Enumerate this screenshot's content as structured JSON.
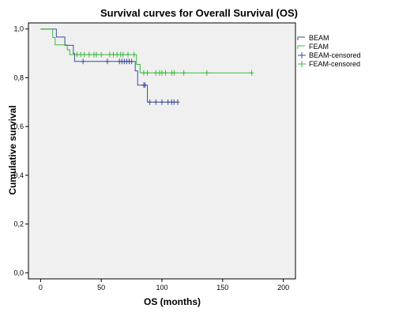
{
  "chart_data": {
    "type": "line",
    "title": "Survival curves for Overall Survival (OS)",
    "xlabel": "OS (months)",
    "ylabel": "Cumulative survival",
    "xlim": [
      -10,
      210
    ],
    "ylim": [
      -0.025,
      1.025
    ],
    "x_ticks": [
      0,
      50,
      100,
      150,
      200
    ],
    "x_tick_labels": [
      "0",
      "50",
      "100",
      "150",
      "200"
    ],
    "y_ticks": [
      0,
      0.2,
      0.4,
      0.6,
      0.8,
      1.0
    ],
    "y_tick_labels": [
      "0,0",
      "0,2",
      "0,4",
      "0,6",
      "0,8",
      "1,0"
    ],
    "plot_background": "#f0f0f0",
    "grid": false,
    "legend_position": "right",
    "legend": [
      "BEAM",
      "FEAM",
      "BEAM-censored",
      "FEAM-censored"
    ],
    "series": [
      {
        "name": "BEAM",
        "color": "#3a4c9c",
        "step": [
          [
            0,
            1.0
          ],
          [
            13,
            1.0
          ],
          [
            13,
            0.967
          ],
          [
            20,
            0.967
          ],
          [
            20,
            0.933
          ],
          [
            27,
            0.933
          ],
          [
            27,
            0.9
          ],
          [
            28,
            0.9
          ],
          [
            28,
            0.867
          ],
          [
            78,
            0.867
          ],
          [
            78,
            0.828
          ],
          [
            80,
            0.828
          ],
          [
            80,
            0.77
          ],
          [
            88,
            0.77
          ],
          [
            88,
            0.7
          ],
          [
            113,
            0.7
          ]
        ],
        "censored": [
          [
            35,
            0.867
          ],
          [
            55,
            0.867
          ],
          [
            65,
            0.867
          ],
          [
            67,
            0.867
          ],
          [
            69,
            0.867
          ],
          [
            71,
            0.867
          ],
          [
            73,
            0.867
          ],
          [
            75,
            0.867
          ],
          [
            85,
            0.77
          ],
          [
            86,
            0.77
          ],
          [
            90,
            0.7
          ],
          [
            95,
            0.7
          ],
          [
            100,
            0.7
          ],
          [
            105,
            0.7
          ],
          [
            108,
            0.7
          ],
          [
            110,
            0.7
          ],
          [
            113,
            0.7
          ]
        ]
      },
      {
        "name": "FEAM",
        "color": "#3cb83c",
        "step": [
          [
            0,
            1.0
          ],
          [
            10,
            1.0
          ],
          [
            10,
            0.965
          ],
          [
            12,
            0.965
          ],
          [
            12,
            0.935
          ],
          [
            22,
            0.935
          ],
          [
            22,
            0.915
          ],
          [
            24,
            0.915
          ],
          [
            24,
            0.895
          ],
          [
            79,
            0.895
          ],
          [
            79,
            0.855
          ],
          [
            82,
            0.855
          ],
          [
            82,
            0.82
          ],
          [
            174,
            0.82
          ]
        ],
        "censored": [
          [
            30,
            0.895
          ],
          [
            33,
            0.895
          ],
          [
            36,
            0.895
          ],
          [
            40,
            0.895
          ],
          [
            44,
            0.895
          ],
          [
            46,
            0.895
          ],
          [
            50,
            0.895
          ],
          [
            57,
            0.895
          ],
          [
            60,
            0.895
          ],
          [
            63,
            0.895
          ],
          [
            66,
            0.895
          ],
          [
            68,
            0.895
          ],
          [
            72,
            0.895
          ],
          [
            77,
            0.895
          ],
          [
            85,
            0.82
          ],
          [
            88,
            0.82
          ],
          [
            95,
            0.82
          ],
          [
            98,
            0.82
          ],
          [
            100,
            0.82
          ],
          [
            103,
            0.82
          ],
          [
            108,
            0.82
          ],
          [
            110,
            0.82
          ],
          [
            118,
            0.82
          ],
          [
            137,
            0.82
          ],
          [
            174,
            0.82
          ]
        ]
      }
    ]
  }
}
